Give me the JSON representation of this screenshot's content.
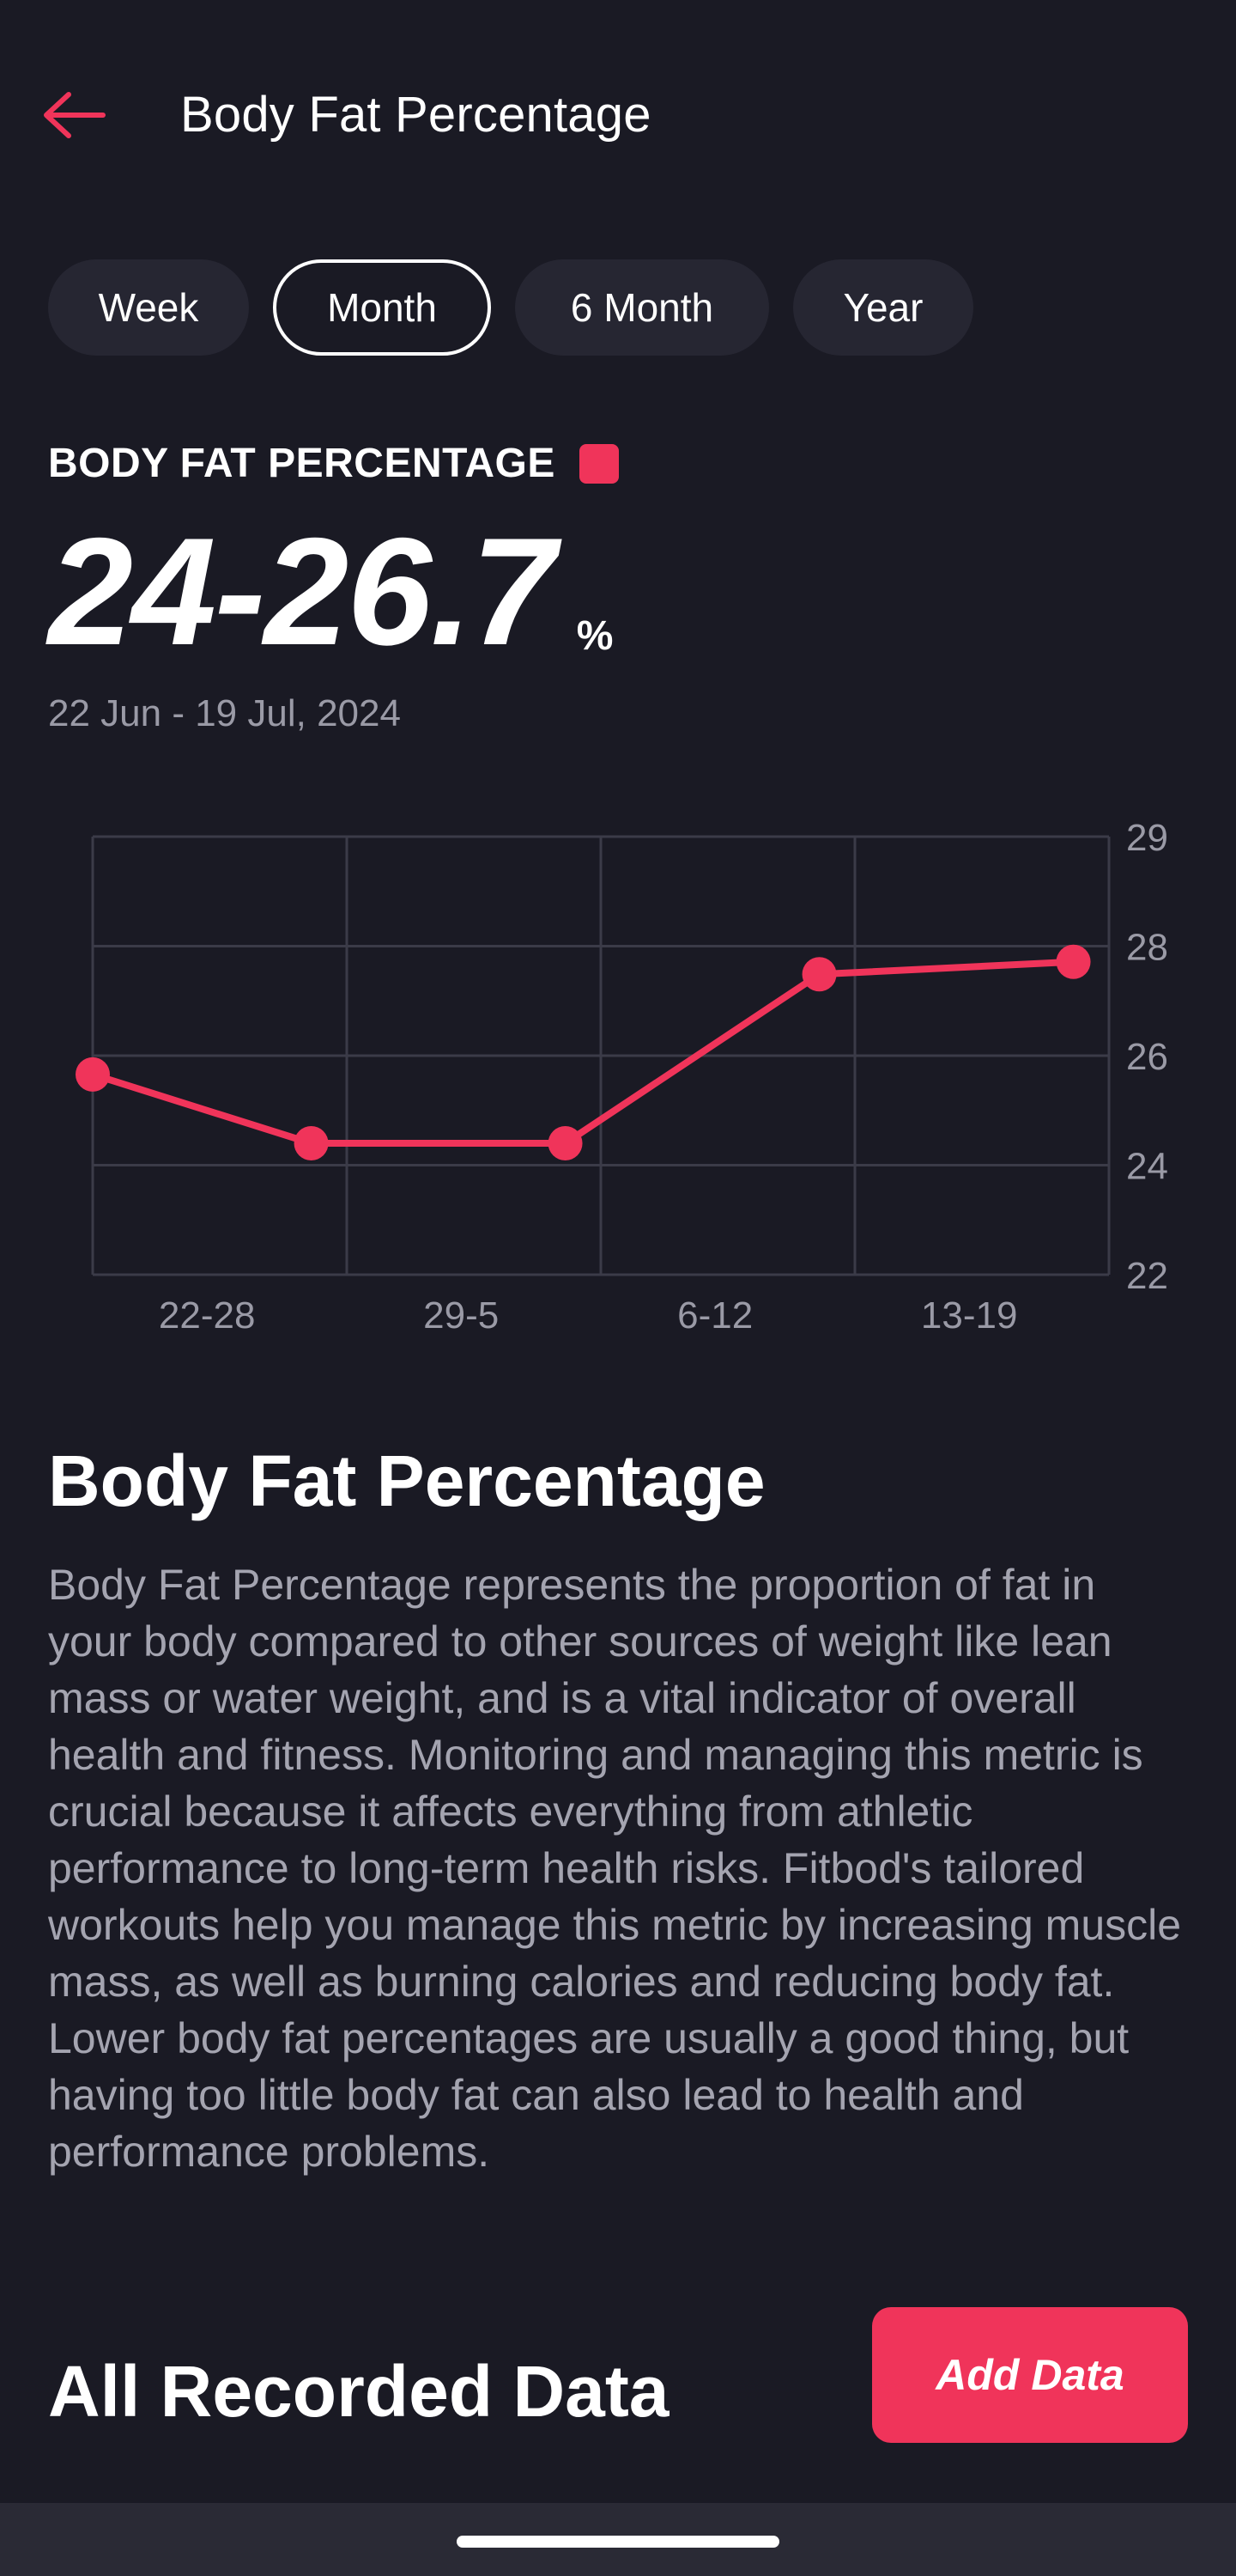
{
  "header": {
    "back_icon": "arrow-left-icon",
    "title": "Body Fat Percentage"
  },
  "tabs": [
    {
      "label": "Week",
      "active": false
    },
    {
      "label": "Month",
      "active": true
    },
    {
      "label": "6 Month",
      "active": false
    },
    {
      "label": "Year",
      "active": false
    }
  ],
  "metric": {
    "label": "BODY FAT PERCENTAGE",
    "value": "24-26.7",
    "unit": "%",
    "date_range": "22 Jun - 19 Jul, 2024"
  },
  "colors": {
    "accent": "#f0345a",
    "background": "#1a1a24",
    "grid": "#3b3b48",
    "muted_text": "#9a9aa6"
  },
  "chart_data": {
    "type": "line",
    "title": "",
    "xlabel": "",
    "ylabel": "",
    "categories": [
      "22-28",
      "29-5",
      "6-12",
      "13-19"
    ],
    "y_ticks": [
      22,
      24,
      26,
      28,
      29
    ],
    "ylim": [
      22,
      29
    ],
    "grid": true,
    "series": [
      {
        "color": "#f0345a",
        "points": [
          {
            "x": 0.0,
            "y": 25.2
          },
          {
            "x": 0.86,
            "y": 24.1
          },
          {
            "x": 1.86,
            "y": 24.1
          },
          {
            "x": 2.86,
            "y": 26.8
          },
          {
            "x": 3.86,
            "y": 27.0
          }
        ]
      }
    ]
  },
  "description": {
    "title": "Body Fat Percentage",
    "body": "Body Fat Percentage represents the proportion of fat in your body compared to other sources of weight like lean mass or water weight, and is a vital indicator of overall health and fitness. Monitoring and managing this metric is crucial because it affects everything from athletic performance to long-term health risks. Fitbod's tailored workouts help you manage this metric by increasing muscle mass, as well as burning calories and reducing body fat. Lower body fat percentages are usually a good thing, but having too little body fat can also lead to health and performance problems."
  },
  "recorded": {
    "title": "All Recorded Data",
    "add_button": "Add Data"
  }
}
